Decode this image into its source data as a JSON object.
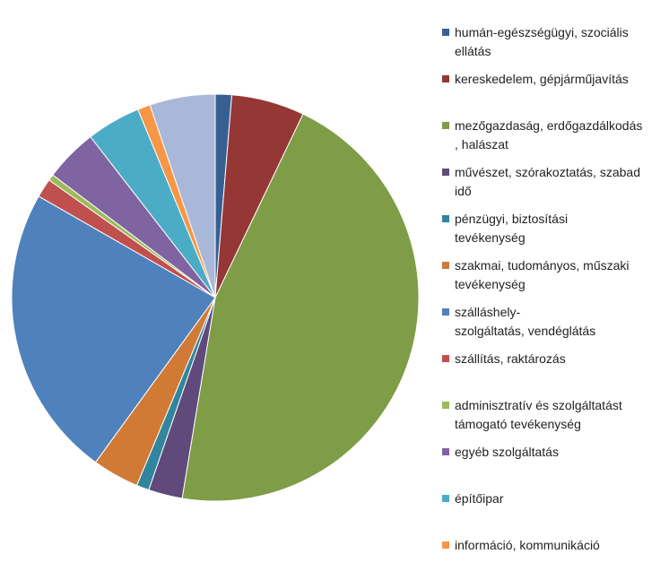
{
  "chart_data": {
    "type": "pie",
    "title": "",
    "start_angle_deg": 0,
    "direction": "clockwise",
    "legend_position": "right",
    "slices": [
      {
        "label": "humán-egészségügyi, szociális\nellátás",
        "value": 1.3,
        "color": "#376092"
      },
      {
        "label": "kereskedelem, gépjárműjavítás",
        "value": 5.8,
        "color": "#953735"
      },
      {
        "label": "mezőgazdaság, erdőgazdálkodás\n, halászat",
        "value": 45.5,
        "color": "#7F9C47"
      },
      {
        "label": "művészet, szórakoztatás, szabad\nidő",
        "value": 2.7,
        "color": "#5F4A7B"
      },
      {
        "label": "pénzügyi, biztosítási\ntevékenység",
        "value": 1.0,
        "color": "#31859C"
      },
      {
        "label": "szakmai, tudományos, műszaki\ntevékenység",
        "value": 3.7,
        "color": "#D07A36"
      },
      {
        "label": "szálláshely-\nszolgáltatás, vendéglátás",
        "value": 23.3,
        "color": "#4F81BD"
      },
      {
        "label": "szállítás, raktározás",
        "value": 1.5,
        "color": "#C0504D"
      },
      {
        "label": "adminisztratív és szolgáltatást\ntámogató tevékenység",
        "value": 0.5,
        "color": "#9BBB59"
      },
      {
        "label": "egyéb szolgáltatás",
        "value": 4.2,
        "color": "#8064A2"
      },
      {
        "label": "építőipar",
        "value": 4.3,
        "color": "#4BACC6"
      },
      {
        "label": "információ, kommunikáció",
        "value": 1.0,
        "color": "#F79646"
      },
      {
        "label": "",
        "value": 5.2,
        "color": "#A9B8D8"
      }
    ]
  }
}
